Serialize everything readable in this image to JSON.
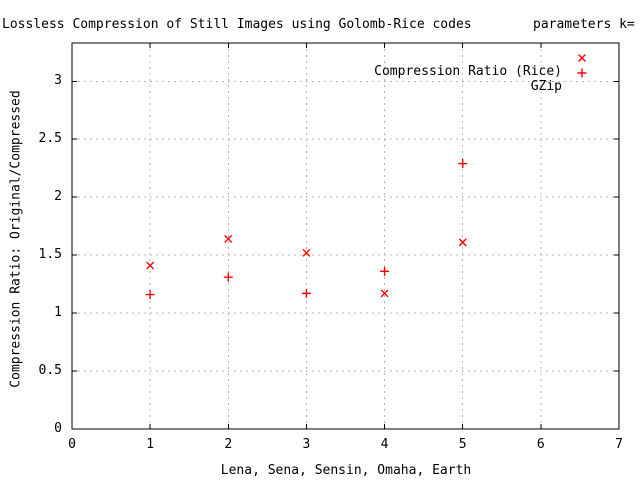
{
  "chart_data": {
    "type": "scatter",
    "title": "Lossless Compression of Still Images using Golomb-Rice codes",
    "annotation_right": "parameters k=",
    "xlabel": "Lena, Sena, Sensin, Omaha, Earth",
    "ylabel": "Compression Ratio: Original/Compressed",
    "xlim": [
      0,
      7
    ],
    "ylim": [
      0,
      3.33
    ],
    "xticks": [
      0,
      1,
      2,
      3,
      4,
      5,
      6,
      7
    ],
    "xtick_labels": [
      "0",
      "1",
      "2",
      "3",
      "4",
      "5",
      "6",
      "7"
    ],
    "yticks": [
      0,
      0.5,
      1,
      1.5,
      2,
      2.5,
      3
    ],
    "ytick_labels": [
      "0",
      "0.5",
      "1",
      "1.5",
      "2",
      "2.5",
      "3"
    ],
    "grid": true,
    "legend_position": "top-right-inside",
    "series": [
      {
        "name": "Compression Ratio (Rice)",
        "marker": "x",
        "color": "#ff0000",
        "points": [
          [
            1,
            1.41
          ],
          [
            2,
            1.64
          ],
          [
            3,
            1.52
          ],
          [
            4,
            1.17
          ],
          [
            5,
            1.61
          ]
        ]
      },
      {
        "name": "GZip",
        "marker": "+",
        "color": "#ff0000",
        "points": [
          [
            1,
            1.16
          ],
          [
            2,
            1.31
          ],
          [
            3,
            1.17
          ],
          [
            4,
            1.36
          ],
          [
            5,
            2.29
          ]
        ]
      }
    ]
  },
  "colors": {
    "background": "#ffffff",
    "text": "#000000",
    "frame": "#000000",
    "grid": "#b4b4b4",
    "marker": "#ff0000"
  }
}
